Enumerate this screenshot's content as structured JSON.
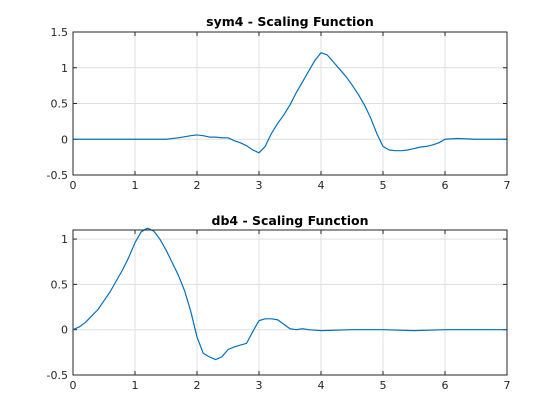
{
  "chart_data": [
    {
      "type": "line",
      "title": "sym4 - Scaling Function",
      "xlabel": "",
      "ylabel": "",
      "xlim": [
        0,
        7
      ],
      "ylim": [
        -0.5,
        1.5
      ],
      "xticks": [
        "0",
        "1",
        "2",
        "3",
        "4",
        "5",
        "6",
        "7"
      ],
      "yticks": [
        "-0.5",
        "0",
        "0.5",
        "1",
        "1.5"
      ],
      "grid": true,
      "color": "#0072BD",
      "series": [
        {
          "x": [
            0,
            1.5,
            1.7,
            1.9,
            2.0,
            2.1,
            2.2,
            2.3,
            2.4,
            2.5,
            2.6,
            2.7,
            2.8,
            2.9,
            3.0,
            3.1,
            3.2,
            3.3,
            3.4,
            3.5,
            3.6,
            3.7,
            3.8,
            3.9,
            4.0,
            4.1,
            4.2,
            4.3,
            4.4,
            4.5,
            4.6,
            4.7,
            4.8,
            4.9,
            5.0,
            5.1,
            5.2,
            5.3,
            5.4,
            5.5,
            5.6,
            5.7,
            5.8,
            5.9,
            6.0,
            6.2,
            6.5,
            7.0
          ],
          "y": [
            0,
            0,
            0.02,
            0.05,
            0.06,
            0.05,
            0.03,
            0.03,
            0.02,
            0.02,
            -0.02,
            -0.05,
            -0.09,
            -0.15,
            -0.19,
            -0.1,
            0.08,
            0.22,
            0.34,
            0.48,
            0.65,
            0.8,
            0.95,
            1.1,
            1.21,
            1.18,
            1.08,
            0.98,
            0.88,
            0.76,
            0.63,
            0.48,
            0.3,
            0.08,
            -0.1,
            -0.15,
            -0.16,
            -0.16,
            -0.15,
            -0.13,
            -0.11,
            -0.1,
            -0.08,
            -0.05,
            0,
            0.01,
            0,
            0
          ]
        }
      ]
    },
    {
      "type": "line",
      "title": "db4 - Scaling Function",
      "xlabel": "",
      "ylabel": "",
      "xlim": [
        0,
        7
      ],
      "ylim": [
        -0.5,
        1.1
      ],
      "xticks": [
        "0",
        "1",
        "2",
        "3",
        "4",
        "5",
        "6",
        "7"
      ],
      "yticks": [
        "-0.5",
        "0",
        "0.5",
        "1"
      ],
      "grid": true,
      "color": "#0072BD",
      "series": [
        {
          "x": [
            0,
            0.1,
            0.2,
            0.3,
            0.4,
            0.5,
            0.6,
            0.7,
            0.8,
            0.9,
            1.0,
            1.1,
            1.2,
            1.3,
            1.4,
            1.5,
            1.6,
            1.7,
            1.8,
            1.9,
            2.0,
            2.1,
            2.2,
            2.3,
            2.4,
            2.5,
            2.6,
            2.7,
            2.8,
            2.9,
            3.0,
            3.1,
            3.2,
            3.3,
            3.4,
            3.5,
            3.6,
            3.7,
            3.8,
            4.0,
            4.5,
            5.0,
            5.5,
            6.0,
            7.0
          ],
          "y": [
            0,
            0.03,
            0.08,
            0.15,
            0.22,
            0.32,
            0.42,
            0.54,
            0.66,
            0.8,
            0.96,
            1.08,
            1.12,
            1.09,
            1.0,
            0.88,
            0.74,
            0.6,
            0.43,
            0.2,
            -0.08,
            -0.26,
            -0.3,
            -0.33,
            -0.3,
            -0.22,
            -0.19,
            -0.17,
            -0.15,
            -0.02,
            0.1,
            0.12,
            0.12,
            0.11,
            0.06,
            0.01,
            0,
            0.01,
            0,
            -0.01,
            0,
            0,
            -0.01,
            0,
            0
          ]
        }
      ]
    }
  ]
}
